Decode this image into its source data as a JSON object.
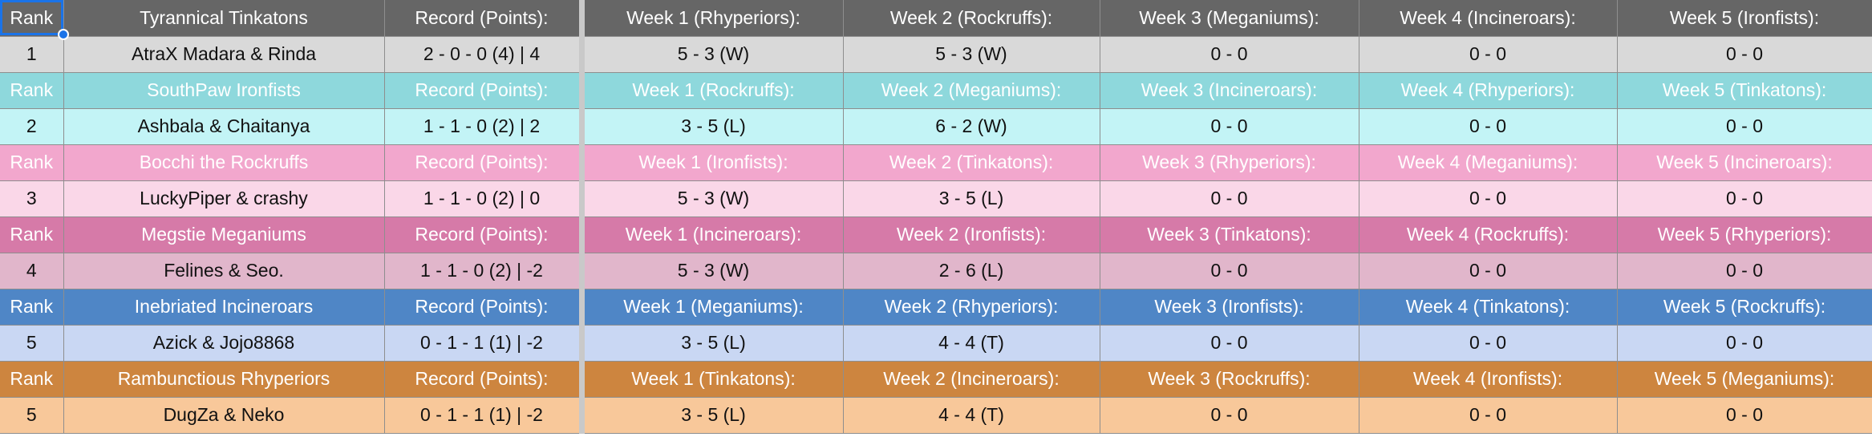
{
  "teams": [
    {
      "header_color": "#666666",
      "row_color": "#d9d9d9",
      "header": [
        "Rank",
        "Tyrannical Tinkatons",
        "Record (Points):",
        "Week 1 (Rhyperiors):",
        "Week 2 (Rockruffs):",
        "Week 3 (Meganiums):",
        "Week 4 (Incineroars):",
        "Week 5 (Ironfists):"
      ],
      "row": [
        "1",
        "AtraX Madara & Rinda",
        "2 - 0 - 0 (4) | 4",
        "5 - 3 (W)",
        "5 - 3 (W)",
        "0 - 0",
        "0 - 0",
        "0 - 0"
      ]
    },
    {
      "header_color": "#8ed8dc",
      "row_color": "#c3f4f6",
      "header": [
        "Rank",
        "SouthPaw Ironfists",
        "Record (Points):",
        "Week 1 (Rockruffs):",
        "Week 2 (Meganiums):",
        "Week 3 (Incineroars):",
        "Week 4 (Rhyperiors):",
        "Week 5 (Tinkatons):"
      ],
      "row": [
        "2",
        "Ashbala & Chaitanya",
        "1 - 1 - 0 (2) | 2",
        "3 - 5 (L)",
        "6 - 2 (W)",
        "0 - 0",
        "0 - 0",
        "0 - 0"
      ]
    },
    {
      "header_color": "#f2a7cd",
      "row_color": "#fad7e8",
      "header": [
        "Rank",
        "Bocchi the Rockruffs",
        "Record (Points):",
        "Week 1 (Ironfists):",
        "Week 2 (Tinkatons):",
        "Week 3 (Rhyperiors):",
        "Week 4 (Meganiums):",
        "Week 5 (Incineroars):"
      ],
      "row": [
        "3",
        "LuckyPiper & crashy",
        "1 - 1 - 0 (2) | 0",
        "5 - 3 (W)",
        "3 - 5 (L)",
        "0 - 0",
        "0 - 0",
        "0 - 0"
      ]
    },
    {
      "header_color": "#d67aa8",
      "row_color": "#e1b6cb",
      "header": [
        "Rank",
        "Megstie Meganiums",
        "Record (Points):",
        "Week 1 (Incineroars):",
        "Week 2 (Ironfists):",
        "Week 3 (Tinkatons):",
        "Week 4 (Rockruffs):",
        "Week 5 (Rhyperiors):"
      ],
      "row": [
        "4",
        "Felines & Seo.",
        "1 - 1 - 0 (2) | -2",
        "5 - 3 (W)",
        "2 - 6 (L)",
        "0 - 0",
        "0 - 0",
        "0 - 0"
      ]
    },
    {
      "header_color": "#4f86c6",
      "row_color": "#c9d7f3",
      "header": [
        "Rank",
        "Inebriated Incineroars",
        "Record (Points):",
        "Week 1 (Meganiums):",
        "Week 2 (Rhyperiors):",
        "Week 3 (Ironfists):",
        "Week 4 (Tinkatons):",
        "Week 5 (Rockruffs):"
      ],
      "row": [
        "5",
        "Azick & Jojo8868",
        "0 - 1 - 1 (1) | -2",
        "3 - 5 (L)",
        "4 - 4 (T)",
        "0 - 0",
        "0 - 0",
        "0 - 0"
      ]
    },
    {
      "header_color": "#cd853f",
      "row_color": "#f8c89a",
      "header": [
        "Rank",
        "Rambunctious Rhyperiors",
        "Record (Points):",
        "Week 1 (Tinkatons):",
        "Week 2 (Incineroars):",
        "Week 3 (Rockruffs):",
        "Week 4 (Ironfists):",
        "Week 5 (Meganiums):"
      ],
      "row": [
        "5",
        "DugZa & Neko",
        "0 - 1 - 1 (1) | -2",
        "3 - 5 (L)",
        "4 - 4 (T)",
        "0 - 0",
        "0 - 0",
        "0 - 0"
      ]
    }
  ]
}
